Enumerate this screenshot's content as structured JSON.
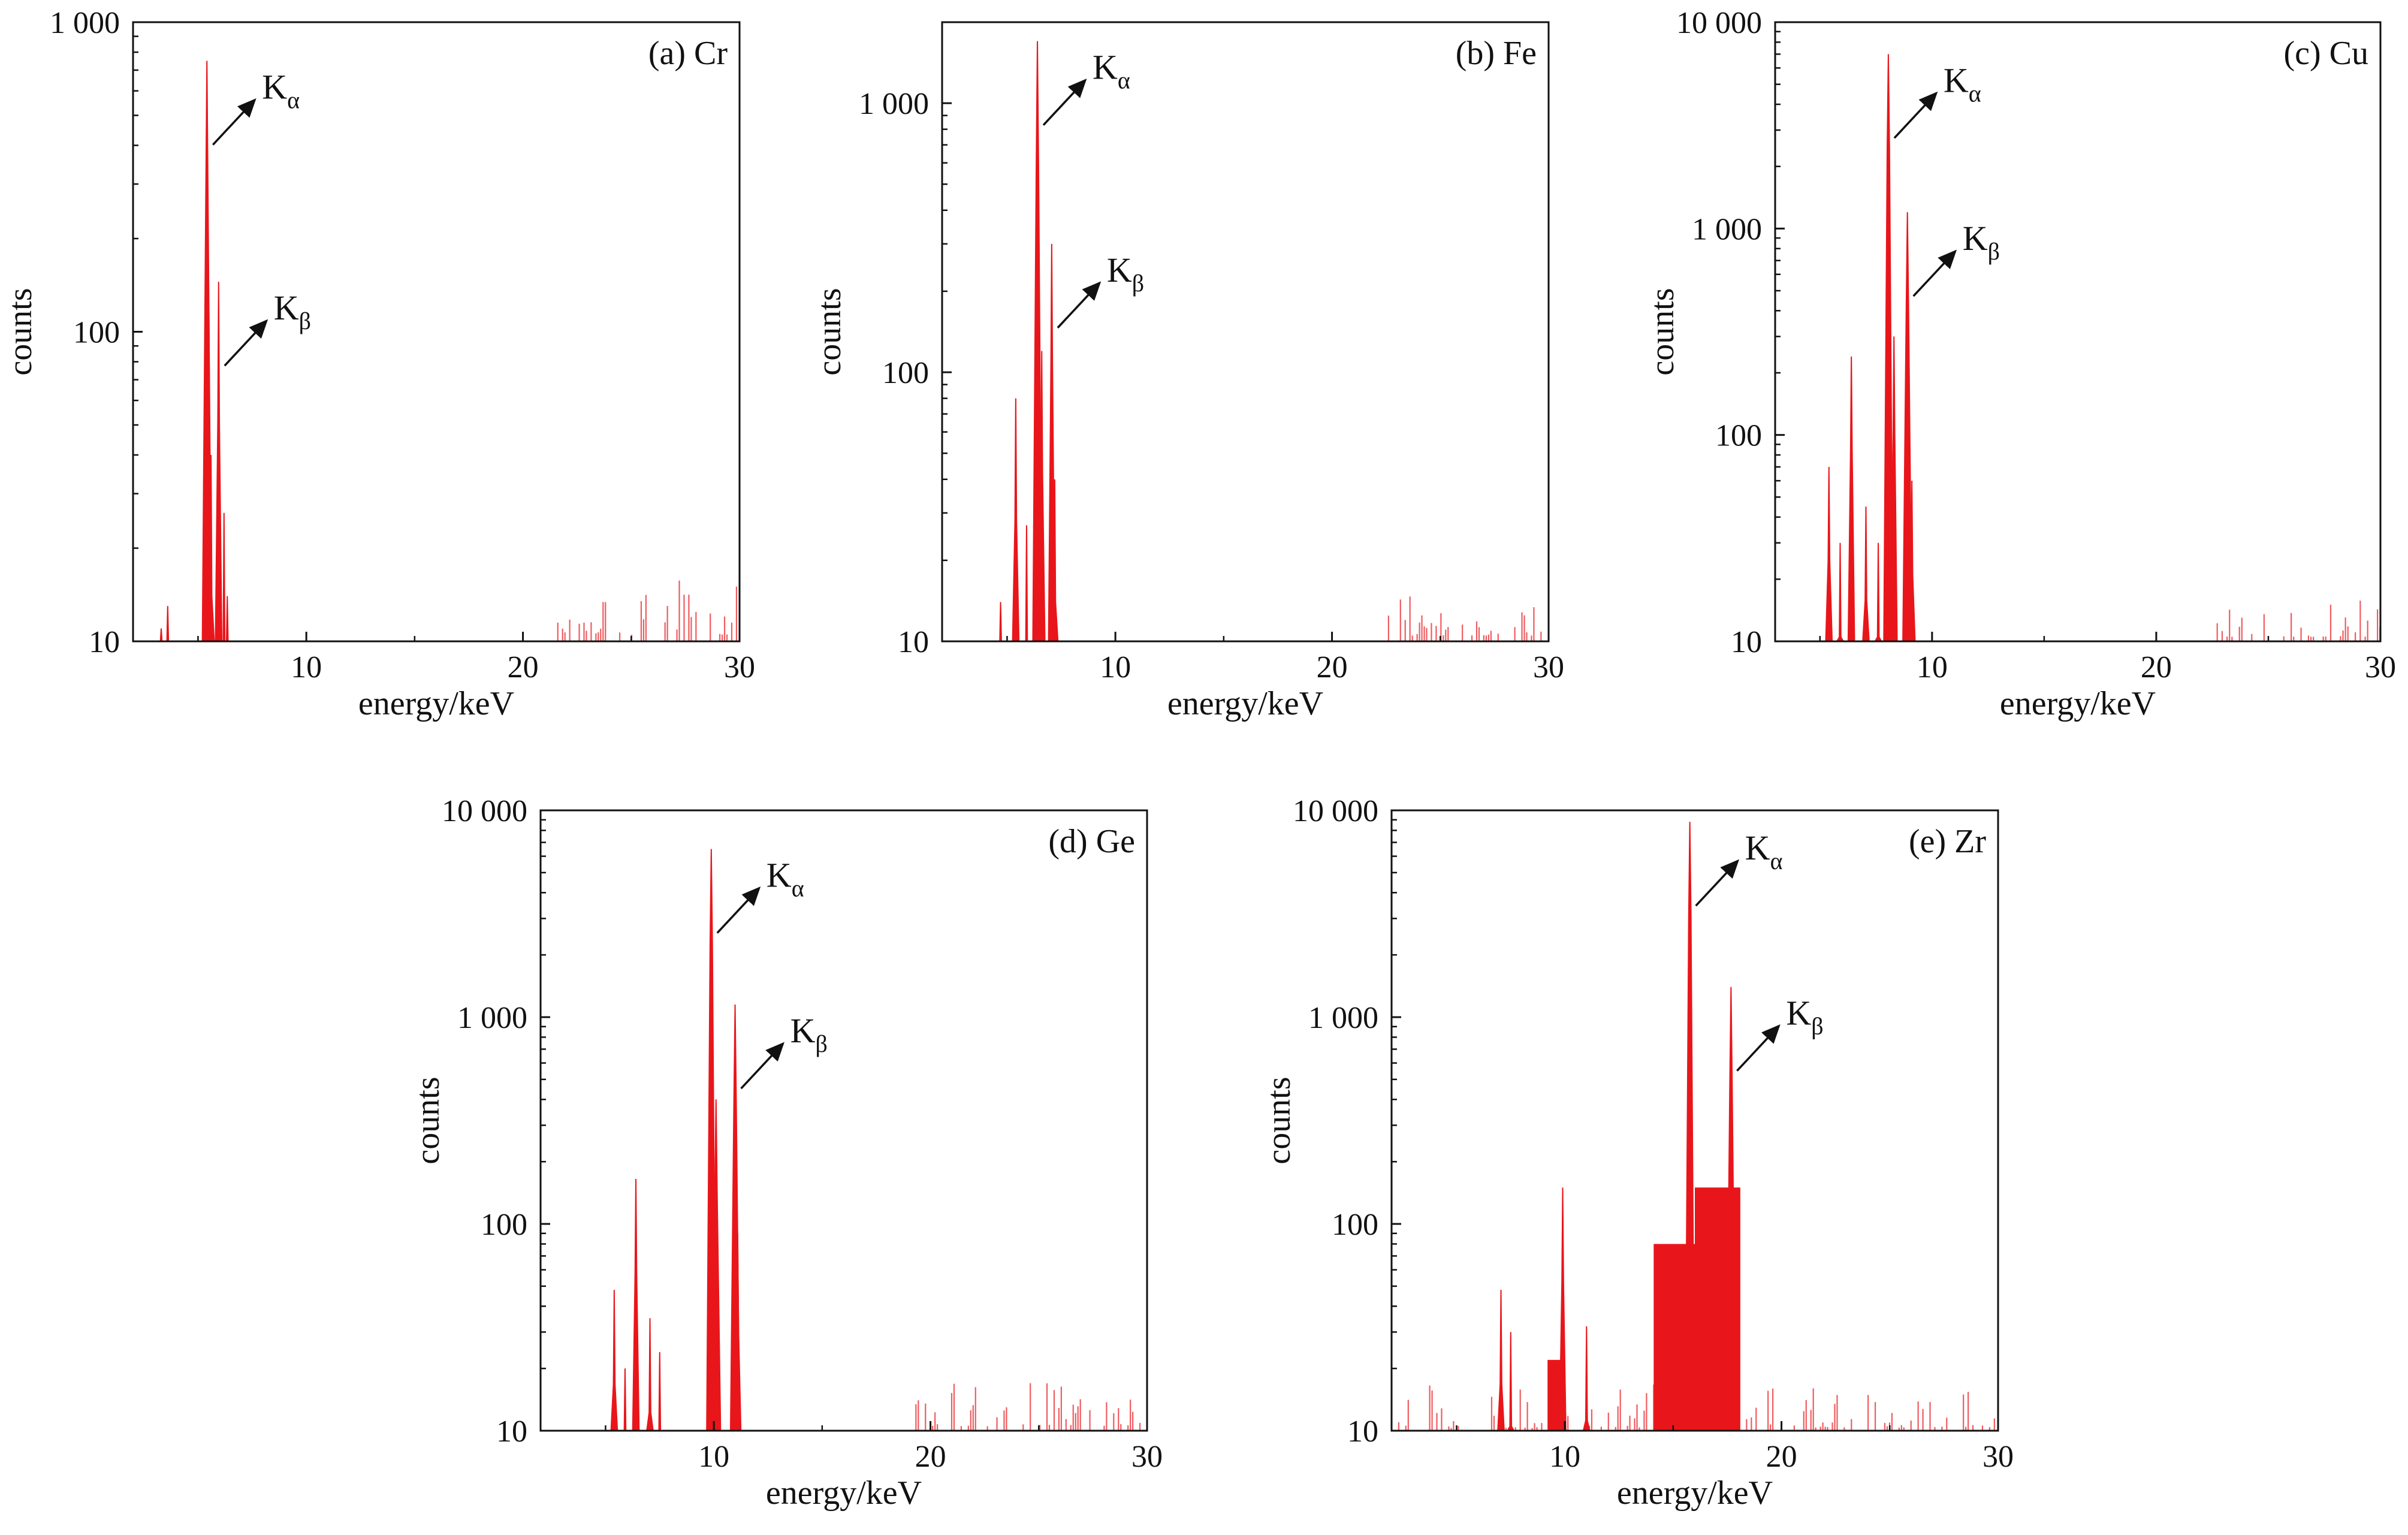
{
  "chart_data": [
    {
      "type": "spectrum",
      "label": "(a) Cr",
      "xlabel": "energy/keV",
      "ylabel": "counts",
      "xlim": [
        2,
        30
      ],
      "ylim": [
        10,
        1000
      ],
      "yscale": "log",
      "x_ticks": [
        10,
        20,
        30
      ],
      "y_ticks": [
        10,
        100,
        1000
      ],
      "y_tick_labels": [
        "10",
        "100",
        "1 000"
      ],
      "peaks": [
        {
          "x": 3.3,
          "y": 11
        },
        {
          "x": 3.6,
          "y": 13
        },
        {
          "x": 5.41,
          "y": 750
        },
        {
          "x": 5.5,
          "y": 120
        },
        {
          "x": 5.6,
          "y": 40
        },
        {
          "x": 5.95,
          "y": 145
        },
        {
          "x": 6.2,
          "y": 26
        },
        {
          "x": 6.35,
          "y": 14
        }
      ],
      "noise": {
        "from": 21.5,
        "to": 30,
        "min": 10.5,
        "max": 16
      },
      "annotations": [
        {
          "label": "K",
          "sub": "α",
          "x": 5.41,
          "y": 750
        },
        {
          "label": "K",
          "sub": "β",
          "x": 5.95,
          "y": 145
        }
      ]
    },
    {
      "type": "spectrum",
      "label": "(b) Fe",
      "xlabel": "energy/keV",
      "ylabel": "counts",
      "xlim": [
        2,
        30
      ],
      "ylim": [
        10,
        2000
      ],
      "yscale": "log",
      "x_ticks": [
        10,
        20,
        30
      ],
      "y_ticks": [
        10,
        100,
        1000
      ],
      "y_tick_labels": [
        "10",
        "100",
        "1 000"
      ],
      "peaks": [
        {
          "x": 4.7,
          "y": 14
        },
        {
          "x": 5.4,
          "y": 80
        },
        {
          "x": 5.9,
          "y": 27
        },
        {
          "x": 6.4,
          "y": 1700
        },
        {
          "x": 6.6,
          "y": 120
        },
        {
          "x": 7.06,
          "y": 300
        },
        {
          "x": 7.2,
          "y": 40
        }
      ],
      "noise": {
        "from": 22.5,
        "to": 30,
        "min": 10.5,
        "max": 15
      },
      "annotations": [
        {
          "label": "K",
          "sub": "α",
          "x": 6.4,
          "y": 1700
        },
        {
          "label": "K",
          "sub": "β",
          "x": 7.06,
          "y": 300
        }
      ]
    },
    {
      "type": "spectrum",
      "label": "(c) Cu",
      "xlabel": "energy/keV",
      "ylabel": "counts",
      "xlim": [
        3,
        30
      ],
      "ylim": [
        10,
        10000
      ],
      "yscale": "log",
      "x_ticks": [
        10,
        20,
        30
      ],
      "y_ticks": [
        10,
        100,
        1000,
        10000
      ],
      "y_tick_labels": [
        "10",
        "100",
        "1 000",
        "10 000"
      ],
      "peaks": [
        {
          "x": 5.4,
          "y": 70
        },
        {
          "x": 5.9,
          "y": 30
        },
        {
          "x": 6.4,
          "y": 240
        },
        {
          "x": 7.05,
          "y": 45
        },
        {
          "x": 7.6,
          "y": 30
        },
        {
          "x": 8.05,
          "y": 7000
        },
        {
          "x": 8.3,
          "y": 300
        },
        {
          "x": 8.9,
          "y": 1200
        },
        {
          "x": 9.1,
          "y": 60
        }
      ],
      "noise": {
        "from": 22.5,
        "to": 30,
        "min": 10.5,
        "max": 16
      },
      "annotations": [
        {
          "label": "K",
          "sub": "α",
          "x": 8.05,
          "y": 7000
        },
        {
          "label": "K",
          "sub": "β",
          "x": 8.9,
          "y": 1200
        }
      ]
    },
    {
      "type": "spectrum",
      "label": "(d) Ge",
      "xlabel": "energy/keV",
      "ylabel": "counts",
      "xlim": [
        2,
        30
      ],
      "ylim": [
        10,
        10000
      ],
      "yscale": "log",
      "x_ticks": [
        10,
        20,
        30
      ],
      "y_ticks": [
        10,
        100,
        1000,
        10000
      ],
      "y_tick_labels": [
        "10",
        "100",
        "1 000",
        "10 000"
      ],
      "peaks": [
        {
          "x": 5.4,
          "y": 48
        },
        {
          "x": 5.9,
          "y": 20
        },
        {
          "x": 6.4,
          "y": 165
        },
        {
          "x": 7.05,
          "y": 35
        },
        {
          "x": 7.5,
          "y": 24
        },
        {
          "x": 9.88,
          "y": 6500
        },
        {
          "x": 10.1,
          "y": 400
        },
        {
          "x": 10.98,
          "y": 1150
        },
        {
          "x": 11.1,
          "y": 90
        }
      ],
      "noise": {
        "from": 19,
        "to": 30,
        "min": 10.5,
        "max": 17
      },
      "annotations": [
        {
          "label": "K",
          "sub": "α",
          "x": 9.88,
          "y": 6500
        },
        {
          "label": "K",
          "sub": "β",
          "x": 10.98,
          "y": 1150
        }
      ]
    },
    {
      "type": "spectrum",
      "label": "(e) Zr",
      "xlabel": "energy/keV",
      "ylabel": "counts",
      "xlim": [
        2,
        30
      ],
      "ylim": [
        10,
        10000
      ],
      "yscale": "log",
      "x_ticks": [
        10,
        20,
        30
      ],
      "y_ticks": [
        10,
        100,
        1000,
        10000
      ],
      "y_tick_labels": [
        "10",
        "100",
        "1 000",
        "10 000"
      ],
      "peaks": [
        {
          "x": 7.05,
          "y": 48
        },
        {
          "x": 7.5,
          "y": 30
        },
        {
          "x": 9.9,
          "y": 150
        },
        {
          "x": 11.0,
          "y": 32
        },
        {
          "x": 15.77,
          "y": 8800
        },
        {
          "x": 17.67,
          "y": 1400
        }
      ],
      "humps": [
        {
          "from": 9.2,
          "to": 9.85,
          "y": 22
        },
        {
          "from": 14.1,
          "to": 16.0,
          "y": 80
        },
        {
          "from": 16.0,
          "to": 18.1,
          "y": 150
        }
      ],
      "noise": {
        "from": 2,
        "to": 30,
        "min": 10.3,
        "max": 17
      },
      "annotations": [
        {
          "label": "K",
          "sub": "α",
          "x": 15.77,
          "y": 8800
        },
        {
          "label": "K",
          "sub": "β",
          "x": 17.67,
          "y": 1400
        }
      ]
    }
  ]
}
